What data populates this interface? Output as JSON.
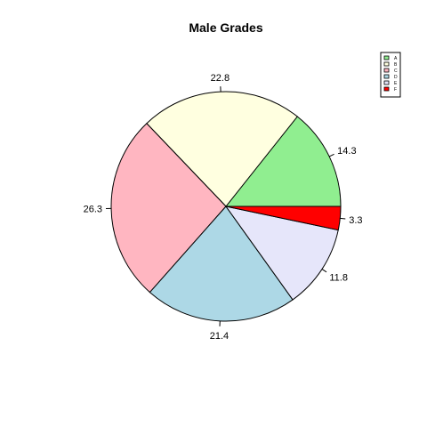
{
  "chart_data": {
    "type": "pie",
    "title": "Male Grades",
    "start_angle_deg": 0,
    "direction": "counterclockwise",
    "slices": [
      {
        "label": "14.3",
        "value": 14.3,
        "color": "#90EE90"
      },
      {
        "label": "22.8",
        "value": 22.8,
        "color": "#FFFFE0"
      },
      {
        "label": "26.3",
        "value": 26.3,
        "color": "#FFB6C1"
      },
      {
        "label": "21.4",
        "value": 21.4,
        "color": "#ADD8E6"
      },
      {
        "label": "11.8",
        "value": 11.8,
        "color": "#E6E6FA"
      },
      {
        "label": "3.3",
        "value": 3.3,
        "color": "#FF0000"
      }
    ],
    "legend": {
      "placement": "top-right",
      "entries": [
        {
          "label": "A",
          "color": "#90EE90"
        },
        {
          "label": "B",
          "color": "#FFFFE0"
        },
        {
          "label": "C",
          "color": "#FFB6C1"
        },
        {
          "label": "D",
          "color": "#ADD8E6"
        },
        {
          "label": "E",
          "color": "#E6E6FA"
        },
        {
          "label": "F",
          "color": "#FF0000"
        }
      ]
    }
  }
}
